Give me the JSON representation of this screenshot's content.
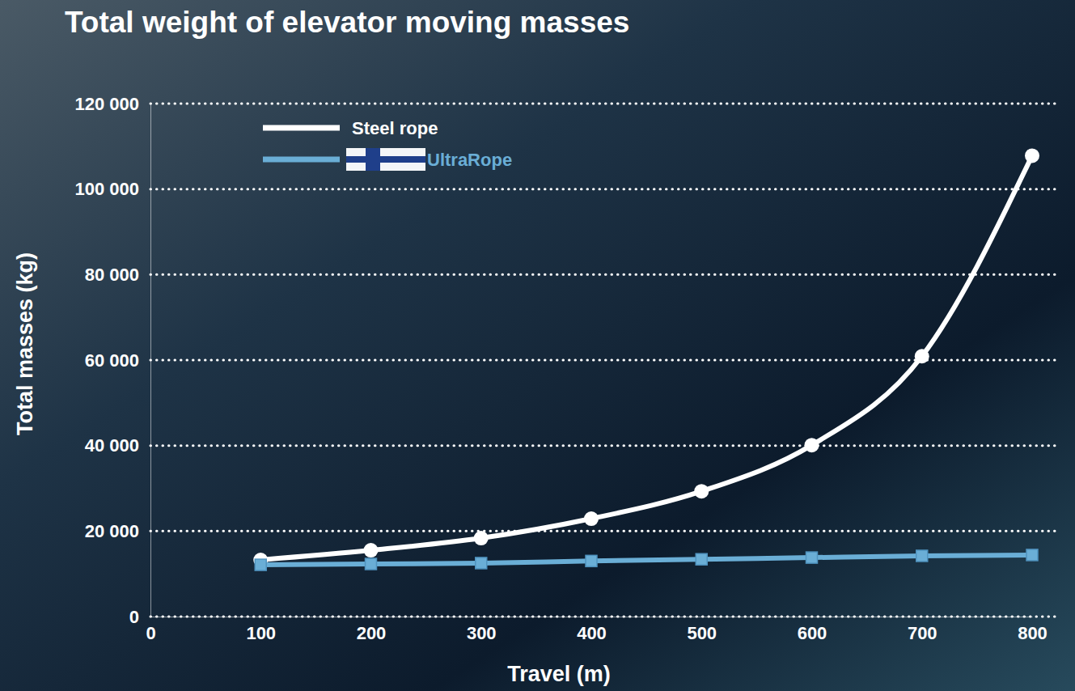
{
  "chart_data": {
    "type": "line",
    "title": "Total weight of elevator moving masses",
    "x_label": "Travel (m)",
    "y_label": "Total masses (kg)",
    "x": [
      100,
      200,
      300,
      400,
      500,
      600,
      700,
      800
    ],
    "series": [
      {
        "name": "Steel rope",
        "color": "#ffffff",
        "marker": "circle",
        "line_style": "solid",
        "values": [
          13250,
          15500,
          18350,
          22900,
          29300,
          40100,
          60900,
          107800
        ]
      },
      {
        "name": "UltraRope",
        "color": "#6aaed6",
        "marker": "square",
        "line_style": "solid",
        "values": [
          12100,
          12300,
          12500,
          13000,
          13400,
          13800,
          14200,
          14400
        ]
      }
    ],
    "xlim": [
      0,
      800
    ],
    "ylim": [
      0,
      120000
    ],
    "xticks": [
      0,
      100,
      200,
      300,
      400,
      500,
      600,
      700,
      800
    ],
    "yticks": [
      {
        "value": 0,
        "label": "0"
      },
      {
        "value": 20000,
        "label": "20 000"
      },
      {
        "value": 40000,
        "label": "40 000"
      },
      {
        "value": 60000,
        "label": "60 000"
      },
      {
        "value": 80000,
        "label": "80 000"
      },
      {
        "value": 100000,
        "label": "100 000"
      },
      {
        "value": 120000,
        "label": "120 000"
      }
    ],
    "grid": true,
    "legend": "upper left"
  }
}
